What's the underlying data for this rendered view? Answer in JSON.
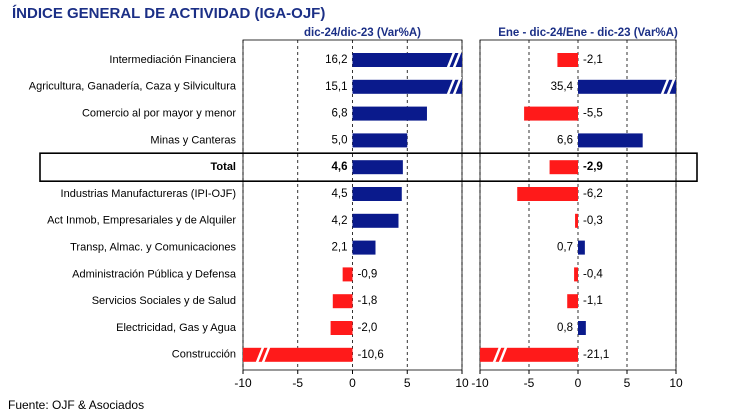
{
  "title": "ÍNDICE GENERAL DE ACTIVIDAD (IGA-OJF)",
  "source": "Fuente: OJF & Asociados",
  "categories": [
    "Intermediación Financiera",
    "Agricultura, Ganadería, Caza y Silvicultura",
    "Comercio al por mayor y menor",
    "Minas y Canteras",
    "Total",
    "Industrias Manufactureras (IPI-OJF)",
    "Act Inmob, Empresariales y de Alquiler",
    "Transp, Almac. y Comunicaciones",
    "Administración Pública y Defensa",
    "Servicios Sociales y de Salud",
    "Electricidad, Gas y Agua",
    "Construcción"
  ],
  "highlight_index": 4,
  "chart_data": [
    {
      "type": "bar",
      "orientation": "horizontal",
      "subtitle": "dic-24/dic-23  (Var%A)",
      "values": [
        16.2,
        15.1,
        6.8,
        5.0,
        4.6,
        4.5,
        4.2,
        2.1,
        -0.9,
        -1.8,
        -2.0,
        -10.6
      ],
      "value_labels": [
        "16,2",
        "15,1",
        "6,8",
        "5,0",
        "4,6",
        "4,5",
        "4,2",
        "2,1",
        "-0,9",
        "-1,8",
        "-2,0",
        "-10,6"
      ],
      "xlim": [
        -10,
        10
      ],
      "xticks": [
        -10,
        -5,
        0,
        5,
        10
      ],
      "grid": true,
      "color_positive": "#0a1a8c",
      "color_negative": "#ff1a1a"
    },
    {
      "type": "bar",
      "orientation": "horizontal",
      "subtitle": "Ene - dic-24/Ene - dic-23  (Var%A)",
      "values": [
        -2.1,
        35.4,
        -5.5,
        6.6,
        -2.9,
        -6.2,
        -0.3,
        0.7,
        -0.4,
        -1.1,
        0.8,
        -21.1
      ],
      "value_labels": [
        "-2,1",
        "35,4",
        "-5,5",
        "6,6",
        "-2,9",
        "-6,2",
        "-0,3",
        "0,7",
        "-0,4",
        "-1,1",
        "0,8",
        "-21,1"
      ],
      "xlim": [
        -10,
        10
      ],
      "xticks": [
        -10,
        -5,
        0,
        5,
        10
      ],
      "grid": true,
      "color_positive": "#0a1a8c",
      "color_negative": "#ff1a1a"
    }
  ]
}
